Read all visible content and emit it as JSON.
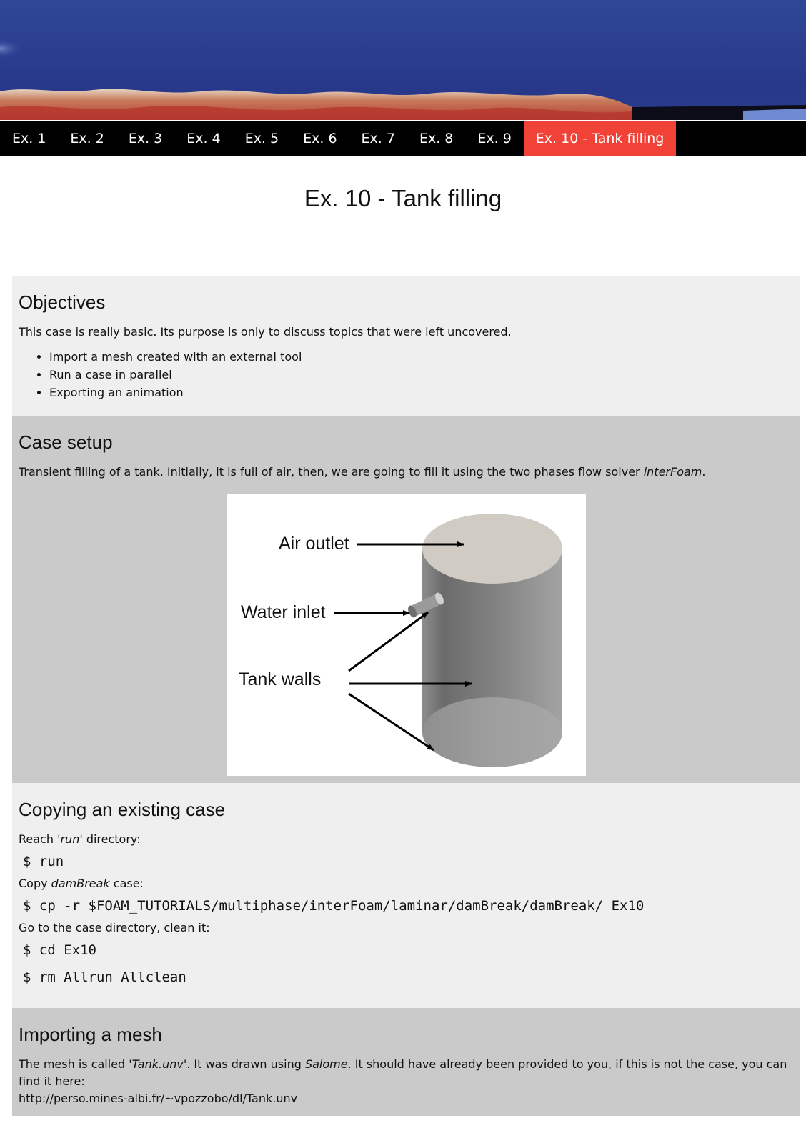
{
  "nav": {
    "items": [
      "Ex. 1",
      "Ex. 2",
      "Ex. 3",
      "Ex. 4",
      "Ex. 5",
      "Ex. 6",
      "Ex. 7",
      "Ex. 8",
      "Ex. 9",
      "Ex. 10 - Tank filling"
    ],
    "active_index": 9
  },
  "page_title": "Ex. 10 - Tank filling",
  "colors": {
    "nav_bg": "#000000",
    "active_tab": "#f14238",
    "light_section": "#efefef",
    "dark_section": "#cacaca"
  },
  "objectives": {
    "heading": "Objectives",
    "intro": "This case is really basic. Its purpose is only to discuss topics that were left uncovered.",
    "bullets": [
      "Import a mesh created with an external tool",
      "Run a case in parallel",
      "Exporting an animation"
    ]
  },
  "case_setup": {
    "heading": "Case setup",
    "text_before": "Transient filling of a tank. Initially, it is full of air, then, we are going to fill it using the two phases flow solver ",
    "solver": "interFoam",
    "text_after": ".",
    "figure_labels": {
      "air_outlet": "Air outlet",
      "water_inlet": "Water inlet",
      "tank_walls": "Tank walls"
    }
  },
  "copying": {
    "heading": "Copying an existing case",
    "step1_before": "Reach '",
    "step1_em": "run",
    "step1_after": "' directory:",
    "cmd1": "$ run",
    "step2_before": "Copy ",
    "step2_em": "damBreak",
    "step2_after": " case:",
    "cmd2": "$ cp -r $FOAM_TUTORIALS/multiphase/interFoam/laminar/damBreak/damBreak/ Ex10",
    "step3": "Go to the case directory, clean it:",
    "cmd3": "$ cd Ex10",
    "cmd4": "$ rm Allrun Allclean"
  },
  "importing": {
    "heading": "Importing a mesh",
    "text_a": "The mesh is called '",
    "file_em": "Tank.unv",
    "text_b": "'. It was drawn using ",
    "tool_em": "Salome",
    "text_c": ". It should have already been provided to you, if this is not the case, you can find it here:",
    "url": "http://perso.mines-albi.fr/~vpozzobo/dl/Tank.unv"
  }
}
